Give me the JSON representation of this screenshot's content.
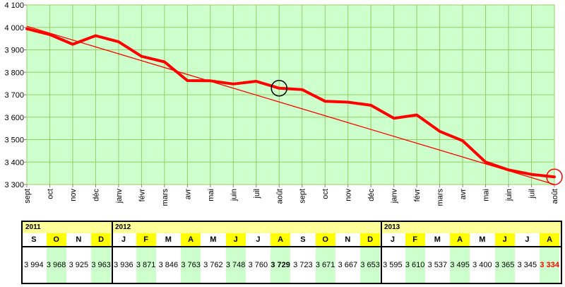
{
  "chart_data": {
    "type": "line",
    "ylim": [
      3300,
      4100
    ],
    "yticks": [
      "3 300",
      "3 400",
      "3 500",
      "3 600",
      "3 700",
      "3 800",
      "3 900",
      "4 000",
      "4 100"
    ],
    "ytick_values": [
      3300,
      3400,
      3500,
      3600,
      3700,
      3800,
      3900,
      4000,
      4100
    ],
    "categories": [
      "sept",
      "oct",
      "nov",
      "déc",
      "janv",
      "févr",
      "mars",
      "avr",
      "mai",
      "juin",
      "juil",
      "août",
      "sept",
      "oct",
      "nov",
      "déc",
      "janv",
      "févr",
      "mars",
      "avr",
      "mai",
      "juin",
      "juil",
      "août"
    ],
    "values": [
      3994,
      3968,
      3925,
      3963,
      3936,
      3871,
      3846,
      3763,
      3762,
      3748,
      3760,
      3729,
      3723,
      3671,
      3667,
      3653,
      3595,
      3610,
      3537,
      3495,
      3400,
      3365,
      3345,
      3334
    ],
    "trendline": [
      4005,
      3300
    ],
    "highlight_indices": [
      11,
      23
    ],
    "grid": true,
    "colors": {
      "plot_bg": "#ccffcc",
      "grid": "#99cc66",
      "line": "#ff0000",
      "highlight_dark": "#000000",
      "highlight_red": "#ff0000"
    }
  },
  "table": {
    "years": [
      {
        "label": "2011",
        "start": 0,
        "count": 4
      },
      {
        "label": "2012",
        "start": 4,
        "count": 12
      },
      {
        "label": "2013",
        "start": 16,
        "count": 8
      }
    ],
    "months": [
      "S",
      "O",
      "N",
      "D",
      "J",
      "F",
      "M",
      "A",
      "M",
      "J",
      "J",
      "A",
      "S",
      "O",
      "N",
      "D",
      "J",
      "F",
      "M",
      "A",
      "M",
      "J",
      "J",
      "A"
    ],
    "highlighted_months": [
      1,
      3,
      5,
      7,
      9,
      11,
      13,
      15,
      17,
      19,
      21,
      23
    ],
    "values": [
      "3 994",
      "3 968",
      "3 925",
      "3 963",
      "3 936",
      "3 871",
      "3 846",
      "3 763",
      "3 762",
      "3 748",
      "3 760",
      "3 729",
      "3 723",
      "3 671",
      "3 667",
      "3 653",
      "3 595",
      "3 610",
      "3 537",
      "3 495",
      "3 400",
      "3 365",
      "3 345",
      "3 334"
    ],
    "green_values": [
      1,
      3,
      5,
      7,
      9,
      11,
      13,
      15,
      17,
      19,
      21,
      23
    ],
    "bold_values": [
      11
    ],
    "red_values": [
      23
    ]
  }
}
